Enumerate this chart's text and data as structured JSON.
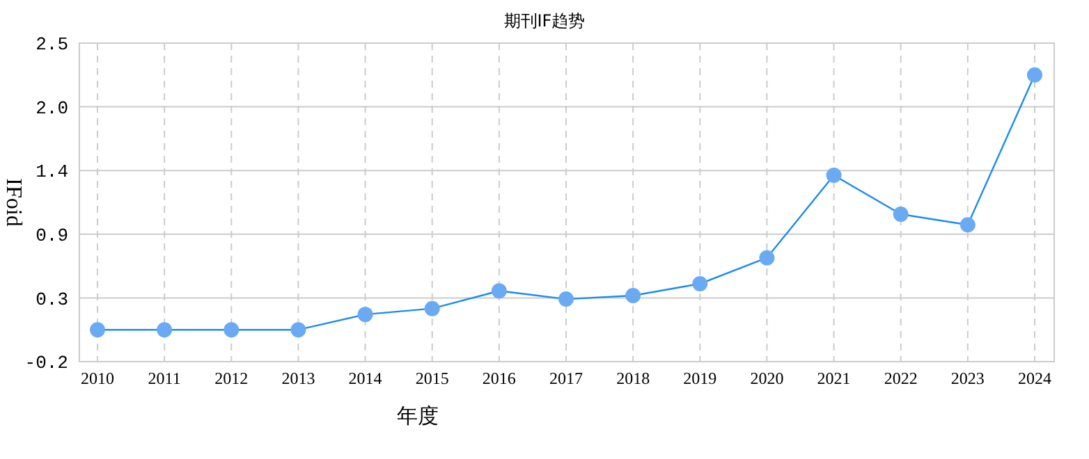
{
  "chart_data": {
    "type": "line",
    "title": "期刊IF趋势",
    "xlabel": "年度",
    "ylabel": "IFoid",
    "categories": [
      "2010",
      "2011",
      "2012",
      "2013",
      "2014",
      "2015",
      "2016",
      "2017",
      "2018",
      "2019",
      "2020",
      "2021",
      "2022",
      "2023",
      "2024"
    ],
    "series": [
      {
        "color": "#1a8cf0",
        "values": [
          0.07,
          0.07,
          0.07,
          0.07,
          0.2,
          0.25,
          0.4,
          0.33,
          0.36,
          0.46,
          0.68,
          1.38,
          1.05,
          0.96,
          2.23
        ]
      }
    ],
    "ylim": [
      -0.2,
      2.5
    ],
    "yticks": [
      -0.2,
      {
        "value": 0.34,
        "label": "0.3"
      },
      {
        "value": 0.88,
        "label": "0.9"
      },
      {
        "value": 1.42,
        "label": "1.4"
      },
      {
        "value": 1.96,
        "label": "2.0"
      },
      2.5
    ],
    "grid": true,
    "marker": "circle",
    "line_style": "solid"
  }
}
